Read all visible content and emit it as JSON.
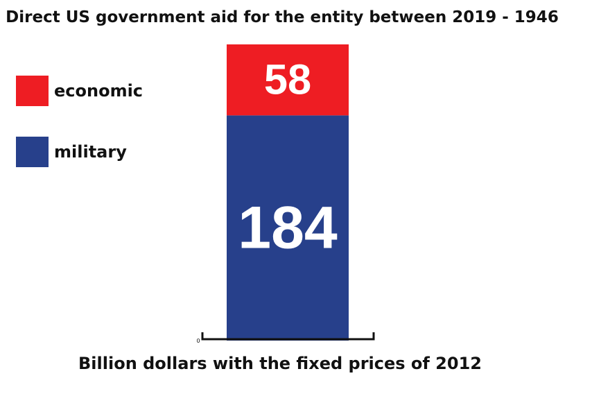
{
  "chart_data": {
    "type": "bar",
    "stacked": true,
    "title": "Direct US government aid for the entity between 2019 - 1946",
    "xlabel": "Billion dollars with the fixed prices of 2012",
    "ylabel": "",
    "categories": [
      ""
    ],
    "series": [
      {
        "name": "military",
        "values": [
          184
        ],
        "color": "#27408b"
      },
      {
        "name": "economic",
        "values": [
          58
        ],
        "color": "#ee1d23"
      }
    ],
    "ylim": [
      0,
      242
    ],
    "y_tick_labels": [
      "0"
    ],
    "legend_position": "left",
    "grid": false
  }
}
